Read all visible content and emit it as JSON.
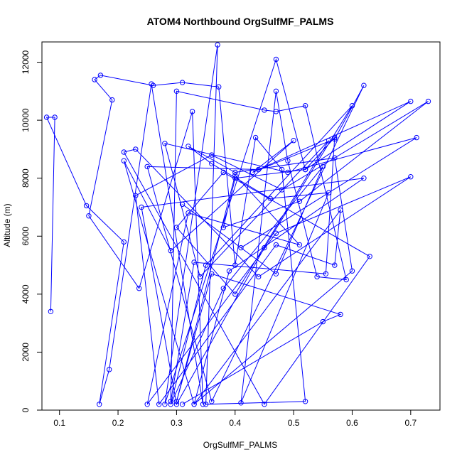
{
  "chart_data": {
    "type": "line",
    "title": "ATOM4 Northbound OrgSulfMF_PALMS",
    "xlabel": "OrgSulfMF_PALMS",
    "ylabel": "Altitude (m)",
    "xlim": [
      0.07,
      0.75
    ],
    "ylim": [
      0,
      12700
    ],
    "xticks": [
      0.1,
      0.2,
      0.3,
      0.4,
      0.5,
      0.6,
      0.7
    ],
    "yticks": [
      0,
      2000,
      4000,
      6000,
      8000,
      10000,
      12000
    ],
    "grid": false,
    "legend": "none",
    "colors": {
      "series": "#0000ff"
    },
    "series": [
      {
        "x": [
          0.085,
          0.092,
          0.078,
          0.146,
          0.21,
          0.168,
          0.185,
          0.257,
          0.345,
          0.327,
          0.236,
          0.15,
          0.19,
          0.16,
          0.17,
          0.26,
          0.31,
          0.372,
          0.4,
          0.435,
          0.48,
          0.52,
          0.35,
          0.37,
          0.28,
          0.47,
          0.52,
          0.57,
          0.555,
          0.33,
          0.29,
          0.3,
          0.45,
          0.47,
          0.52,
          0.59,
          0.54,
          0.49,
          0.47,
          0.41,
          0.56,
          0.46,
          0.36,
          0.32,
          0.4,
          0.57,
          0.6,
          0.33,
          0.21,
          0.29,
          0.5,
          0.43,
          0.57,
          0.62,
          0.36,
          0.25,
          0.44,
          0.7,
          0.52,
          0.4,
          0.38,
          0.51,
          0.73,
          0.48,
          0.36,
          0.23,
          0.27,
          0.47,
          0.57,
          0.58,
          0.33,
          0.39,
          0.62,
          0.24,
          0.3,
          0.45,
          0.6,
          0.35,
          0.29,
          0.38,
          0.55,
          0.47,
          0.31,
          0.41,
          0.71,
          0.49,
          0.28,
          0.34,
          0.56,
          0.4,
          0.3,
          0.38,
          0.63,
          0.45,
          0.21,
          0.23,
          0.44,
          0.7,
          0.47,
          0.25,
          0.32,
          0.51,
          0.4,
          0.3,
          0.36,
          0.58,
          0.55,
          0.31
        ],
        "y": [
          3400,
          10100,
          10100,
          7050,
          5800,
          200,
          1400,
          11250,
          200,
          10300,
          4200,
          6700,
          10700,
          11400,
          11550,
          11200,
          11300,
          11150,
          5000,
          9400,
          8300,
          300,
          200,
          12600,
          200,
          12100,
          8300,
          9400,
          4700,
          5100,
          300,
          11000,
          10350,
          10300,
          10500,
          4500,
          4600,
          8600,
          11000,
          250,
          7500,
          7300,
          8500,
          9100,
          8200,
          8700,
          4800,
          200,
          8600,
          5500,
          9300,
          8200,
          9350,
          11200,
          300,
          8400,
          8300,
          10650,
          8300,
          8000,
          6300,
          7200,
          10650,
          7600,
          8800,
          7400,
          200,
          5700,
          5000,
          6900,
          200,
          4800,
          8000,
          7000,
          200,
          5600,
          10500,
          5000,
          200,
          4200,
          8400,
          4700,
          7100,
          5600,
          9400,
          8200,
          9200,
          4600,
          9300,
          4000,
          6300,
          8200,
          5300,
          200,
          8900,
          9000,
          4600,
          8050,
          6100,
          200,
          6800,
          5700,
          8100,
          300,
          4700,
          3300,
          3050,
          200
        ]
      }
    ]
  }
}
